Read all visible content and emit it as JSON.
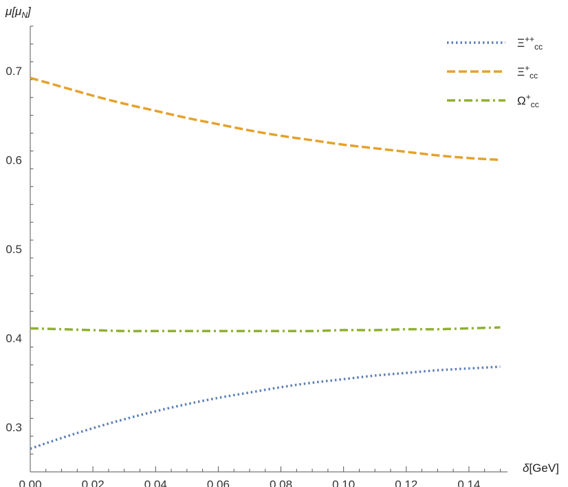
{
  "chart_data": {
    "type": "line",
    "title": "",
    "xlabel_symbol": "δ",
    "xlabel_unit": "[GeV]",
    "ylabel_symbol": "μ",
    "ylabel_unit_open": "[μ",
    "ylabel_unit_sub": "N",
    "ylabel_unit_close": "]",
    "xlim": [
      0,
      0.15
    ],
    "ylim": [
      0.25,
      0.75
    ],
    "x_ticks": [
      0.0,
      0.02,
      0.04,
      0.06,
      0.08,
      0.1,
      0.12,
      0.14
    ],
    "x_tick_labels": [
      "0.00",
      "0.02",
      "0.04",
      "0.06",
      "0.08",
      "0.10",
      "0.12",
      "0.14"
    ],
    "y_ticks": [
      0.3,
      0.4,
      0.5,
      0.6,
      0.7
    ],
    "y_tick_labels": [
      "0.3",
      "0.4",
      "0.5",
      "0.6",
      "0.7"
    ],
    "grid": false,
    "legend_position": "top-right",
    "x": [
      0.0,
      0.01,
      0.02,
      0.03,
      0.04,
      0.05,
      0.06,
      0.07,
      0.08,
      0.09,
      0.1,
      0.11,
      0.12,
      0.13,
      0.14,
      0.15
    ],
    "series": [
      {
        "name": "Ξ++cc",
        "label_main": "Ξ",
        "label_sup": "++",
        "label_sub": "cc",
        "color": "#5b7fb5",
        "style": "dotted",
        "values": [
          0.276,
          0.288,
          0.299,
          0.309,
          0.318,
          0.326,
          0.333,
          0.339,
          0.345,
          0.35,
          0.354,
          0.358,
          0.361,
          0.364,
          0.366,
          0.368
        ]
      },
      {
        "name": "Ξ+cc",
        "label_main": "Ξ",
        "label_sup": "+",
        "label_sub": "cc",
        "color": "#e5a12b",
        "style": "dashed",
        "values": [
          0.692,
          0.682,
          0.672,
          0.663,
          0.655,
          0.647,
          0.64,
          0.633,
          0.627,
          0.622,
          0.617,
          0.613,
          0.609,
          0.605,
          0.602,
          0.6
        ]
      },
      {
        "name": "Ω+cc",
        "label_main": "Ω",
        "label_sup": "+",
        "label_sub": "cc",
        "color": "#8fb032",
        "style": "dashdot",
        "values": [
          0.411,
          0.41,
          0.409,
          0.408,
          0.408,
          0.408,
          0.408,
          0.408,
          0.408,
          0.408,
          0.409,
          0.409,
          0.41,
          0.41,
          0.411,
          0.412
        ]
      }
    ]
  }
}
